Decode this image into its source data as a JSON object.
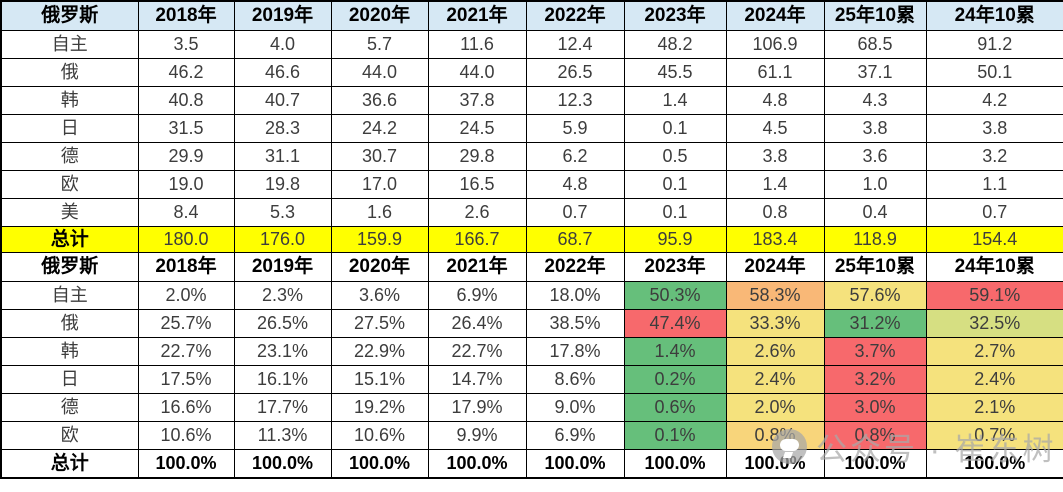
{
  "colors": {
    "header_blue": "#D6E8F4",
    "total_yellow": "#FFFF00",
    "accent_red_text": "#FF0000",
    "scale_green": "#66BF7B",
    "scale_yellow": "#F5E27D",
    "scale_orange": "#F9B877",
    "scale_red": "#F7696C",
    "scale_olive": "#D6DF82",
    "scale_amber": "#F8D57B",
    "watermark_gray": "#A8A8A8"
  },
  "table1": {
    "header": [
      "俄罗斯",
      "2018年",
      "2019年",
      "2020年",
      "2021年",
      "2022年",
      "2023年",
      "2024年",
      "25年10累",
      "24年10累"
    ],
    "rows": [
      {
        "label": "自主",
        "values": [
          "3.5",
          "4.0",
          "5.7",
          "11.6",
          "12.4",
          "48.2",
          "106.9",
          "68.5",
          "91.2"
        ]
      },
      {
        "label": "俄",
        "values": [
          "46.2",
          "46.6",
          "44.0",
          "44.0",
          "26.5",
          "45.5",
          "61.1",
          "37.1",
          "50.1"
        ]
      },
      {
        "label": "韩",
        "values": [
          "40.8",
          "40.7",
          "36.6",
          "37.8",
          "12.3",
          "1.4",
          "4.8",
          "4.3",
          "4.2"
        ]
      },
      {
        "label": "日",
        "values": [
          "31.5",
          "28.3",
          "24.2",
          "24.5",
          "5.9",
          "0.1",
          "4.5",
          "3.8",
          "3.8"
        ]
      },
      {
        "label": "德",
        "values": [
          "29.9",
          "31.1",
          "30.7",
          "29.8",
          "6.2",
          "0.5",
          "3.8",
          "3.6",
          "3.2"
        ]
      },
      {
        "label": "欧",
        "values": [
          "19.0",
          "19.8",
          "17.0",
          "16.5",
          "4.8",
          "0.1",
          "1.4",
          "1.0",
          "1.1"
        ]
      },
      {
        "label": "美",
        "values": [
          "8.4",
          "5.3",
          "1.6",
          "2.6",
          "0.7",
          "0.1",
          "0.8",
          "0.4",
          "0.7"
        ]
      }
    ],
    "total": {
      "label": "总计",
      "values": [
        "180.0",
        "176.0",
        "159.9",
        "166.7",
        "68.7",
        "95.9",
        "183.4",
        "118.9",
        "154.4"
      ]
    }
  },
  "table2": {
    "header": [
      "俄罗斯",
      "2018年",
      "2019年",
      "2020年",
      "2021年",
      "2022年",
      "2023年",
      "2024年",
      "25年10累",
      "24年10累"
    ],
    "rows": [
      {
        "label": "自主",
        "values": [
          "2.0%",
          "2.3%",
          "3.6%",
          "6.9%",
          "18.0%",
          "50.3%",
          "58.3%",
          "57.6%",
          "59.1%"
        ],
        "colors": [
          "",
          "",
          "",
          "",
          "",
          "green",
          "orange",
          "yellow",
          "red"
        ]
      },
      {
        "label": "俄",
        "values": [
          "25.7%",
          "26.5%",
          "27.5%",
          "26.4%",
          "38.5%",
          "47.4%",
          "33.3%",
          "31.2%",
          "32.5%"
        ],
        "colors": [
          "",
          "",
          "",
          "",
          "",
          "red",
          "yellow",
          "green",
          "olive"
        ]
      },
      {
        "label": "韩",
        "values": [
          "22.7%",
          "23.1%",
          "22.9%",
          "22.7%",
          "17.8%",
          "1.4%",
          "2.6%",
          "3.7%",
          "2.7%"
        ],
        "colors": [
          "",
          "",
          "",
          "",
          "",
          "green",
          "yellow",
          "red",
          "yellow"
        ]
      },
      {
        "label": "日",
        "values": [
          "17.5%",
          "16.1%",
          "15.1%",
          "14.7%",
          "8.6%",
          "0.2%",
          "2.4%",
          "3.2%",
          "2.4%"
        ],
        "colors": [
          "",
          "",
          "",
          "",
          "",
          "green",
          "yellow",
          "red",
          "yellow"
        ]
      },
      {
        "label": "德",
        "values": [
          "16.6%",
          "17.7%",
          "19.2%",
          "17.9%",
          "9.0%",
          "0.6%",
          "2.0%",
          "3.0%",
          "2.1%"
        ],
        "colors": [
          "",
          "",
          "",
          "",
          "",
          "green",
          "yellow",
          "red",
          "yellow"
        ]
      },
      {
        "label": "欧",
        "values": [
          "10.6%",
          "11.3%",
          "10.6%",
          "9.9%",
          "6.9%",
          "0.1%",
          "0.8%",
          "0.8%",
          "0.7%"
        ],
        "colors": [
          "",
          "",
          "",
          "",
          "",
          "green",
          "amber",
          "red",
          "yellow"
        ]
      }
    ],
    "total": {
      "label": "总计",
      "values": [
        "100.0%",
        "100.0%",
        "100.0%",
        "100.0%",
        "100.0%",
        "100.0%",
        "100.0%",
        "100.0%",
        "100.0%"
      ]
    }
  },
  "watermark": {
    "icon": "wechat-official-account-icon",
    "text": "公众号 · 崔东树"
  }
}
